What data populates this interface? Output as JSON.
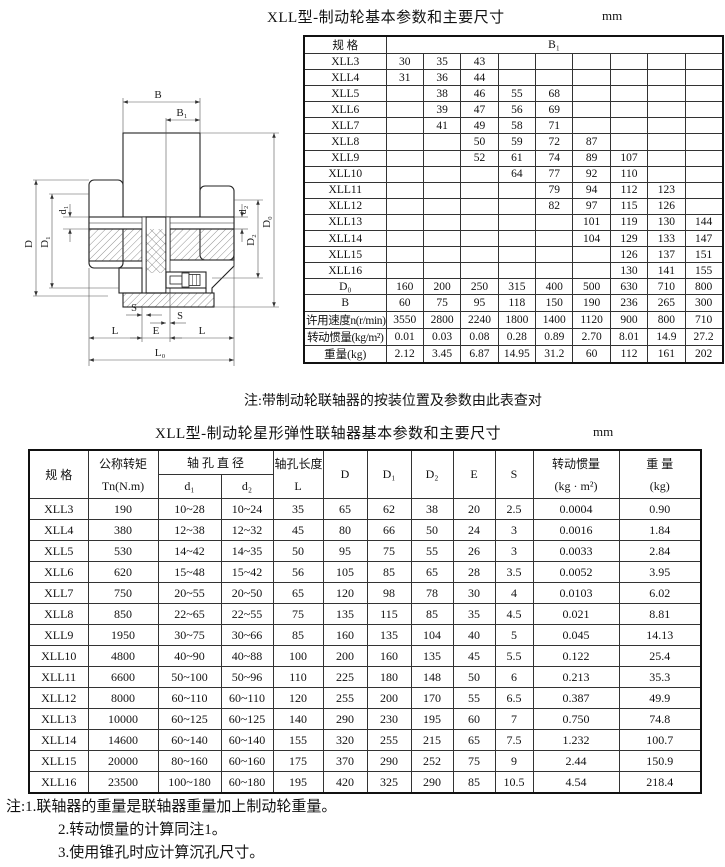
{
  "page": {
    "table1_title": "XLL型-制动轮基本参数和主要尺寸",
    "table1_unit": "mm",
    "table1_note": "注:带制动轮联轴器的按装位置及参数由此表查对",
    "table2_title": "XLL型-制动轮星形弹性联轴器基本参数和主要尺寸",
    "table2_unit": "mm",
    "footnotes": [
      "注:1.联轴器的重量是联轴器重量加上制动轮重量。",
      "2.转动惯量的计算同注1。",
      "3.使用锥孔时应计算沉孔尺寸。"
    ]
  },
  "drawing": {
    "labels": {
      "b": "B",
      "b1": "B₁",
      "d": "D",
      "d1_big": "D₁",
      "d1": "d₁",
      "d2": "d₂",
      "d2_big": "D₂",
      "d0": "D₀",
      "s_left": "S",
      "s_right": "S",
      "l_left": "L",
      "e": "E",
      "l_right": "L",
      "l0": "L₀"
    }
  },
  "table1": {
    "header": {
      "spec": "规 格",
      "b1": "B₁"
    },
    "rows": [
      [
        "XLL3",
        "30",
        "35",
        "43",
        "",
        "",
        "",
        "",
        "",
        ""
      ],
      [
        "XLL4",
        "31",
        "36",
        "44",
        "",
        "",
        "",
        "",
        "",
        ""
      ],
      [
        "XLL5",
        "",
        "38",
        "46",
        "55",
        "68",
        "",
        "",
        "",
        ""
      ],
      [
        "XLL6",
        "",
        "39",
        "47",
        "56",
        "69",
        "",
        "",
        "",
        ""
      ],
      [
        "XLL7",
        "",
        "41",
        "49",
        "58",
        "71",
        "",
        "",
        "",
        ""
      ],
      [
        "XLL8",
        "",
        "",
        "50",
        "59",
        "72",
        "87",
        "",
        "",
        ""
      ],
      [
        "XLL9",
        "",
        "",
        "52",
        "61",
        "74",
        "89",
        "107",
        "",
        ""
      ],
      [
        "XLL10",
        "",
        "",
        "",
        "64",
        "77",
        "92",
        "110",
        "",
        ""
      ],
      [
        "XLL11",
        "",
        "",
        "",
        "",
        "79",
        "94",
        "112",
        "123",
        ""
      ],
      [
        "XLL12",
        "",
        "",
        "",
        "",
        "82",
        "97",
        "115",
        "126",
        ""
      ],
      [
        "XLL13",
        "",
        "",
        "",
        "",
        "",
        "101",
        "119",
        "130",
        "144"
      ],
      [
        "XLL14",
        "",
        "",
        "",
        "",
        "",
        "104",
        "129",
        "133",
        "147"
      ],
      [
        "XLL15",
        "",
        "",
        "",
        "",
        "",
        "",
        "126",
        "137",
        "151"
      ],
      [
        "XLL16",
        "",
        "",
        "",
        "",
        "",
        "",
        "130",
        "141",
        "155"
      ]
    ],
    "footer_rows": [
      [
        "D₀",
        "160",
        "200",
        "250",
        "315",
        "400",
        "500",
        "630",
        "710",
        "800"
      ],
      [
        "B",
        "60",
        "75",
        "95",
        "118",
        "150",
        "190",
        "236",
        "265",
        "300"
      ],
      [
        "许用速度n(r/min)",
        "3550",
        "2800",
        "2240",
        "1800",
        "1400",
        "1120",
        "900",
        "800",
        "710"
      ],
      [
        "转动惯量(kg/m²)",
        "0.01",
        "0.03",
        "0.08",
        "0.28",
        "0.89",
        "2.70",
        "8.01",
        "14.9",
        "27.2"
      ],
      [
        "重量(kg)",
        "2.12",
        "3.45",
        "6.87",
        "14.95",
        "31.2",
        "60",
        "112",
        "161",
        "202"
      ]
    ]
  },
  "table2": {
    "headers": {
      "spec": "规   格",
      "torque_line1": "公称转矩",
      "torque_line2": "Tn(N.m)",
      "bore_dia": "轴 孔 直 径",
      "d1": "d₁",
      "d2": "d₂",
      "bore_len_line1": "轴孔长度",
      "bore_len_line2": "L",
      "D": "D",
      "D1": "D₁",
      "D2": "D₂",
      "E": "E",
      "S": "S",
      "inertia_line1": "转动惯量",
      "inertia_line2": "(kg · m²)",
      "weight_line1": "重 量",
      "weight_line2": "(kg)"
    },
    "rows": [
      [
        "XLL3",
        "190",
        "10~28",
        "10~24",
        "35",
        "65",
        "62",
        "38",
        "20",
        "2.5",
        "0.0004",
        "0.90"
      ],
      [
        "XLL4",
        "380",
        "12~38",
        "12~32",
        "45",
        "80",
        "66",
        "50",
        "24",
        "3",
        "0.0016",
        "1.84"
      ],
      [
        "XLL5",
        "530",
        "14~42",
        "14~35",
        "50",
        "95",
        "75",
        "55",
        "26",
        "3",
        "0.0033",
        "2.84"
      ],
      [
        "XLL6",
        "620",
        "15~48",
        "15~42",
        "56",
        "105",
        "85",
        "65",
        "28",
        "3.5",
        "0.0052",
        "3.95"
      ],
      [
        "XLL7",
        "750",
        "20~55",
        "20~50",
        "65",
        "120",
        "98",
        "78",
        "30",
        "4",
        "0.0103",
        "6.02"
      ],
      [
        "XLL8",
        "850",
        "22~65",
        "22~55",
        "75",
        "135",
        "115",
        "85",
        "35",
        "4.5",
        "0.021",
        "8.81"
      ],
      [
        "XLL9",
        "1950",
        "30~75",
        "30~66",
        "85",
        "160",
        "135",
        "104",
        "40",
        "5",
        "0.045",
        "14.13"
      ],
      [
        "XLL10",
        "4800",
        "40~90",
        "40~88",
        "100",
        "200",
        "160",
        "135",
        "45",
        "5.5",
        "0.122",
        "25.4"
      ],
      [
        "XLL11",
        "6600",
        "50~100",
        "50~96",
        "110",
        "225",
        "180",
        "148",
        "50",
        "6",
        "0.213",
        "35.3"
      ],
      [
        "XLL12",
        "8000",
        "60~110",
        "60~110",
        "120",
        "255",
        "200",
        "170",
        "55",
        "6.5",
        "0.387",
        "49.9"
      ],
      [
        "XLL13",
        "10000",
        "60~125",
        "60~125",
        "140",
        "290",
        "230",
        "195",
        "60",
        "7",
        "0.750",
        "74.8"
      ],
      [
        "XLL14",
        "14600",
        "60~140",
        "60~140",
        "155",
        "320",
        "255",
        "215",
        "65",
        "7.5",
        "1.232",
        "100.7"
      ],
      [
        "XLL15",
        "20000",
        "80~160",
        "60~160",
        "175",
        "370",
        "290",
        "252",
        "75",
        "9",
        "2.44",
        "150.9"
      ],
      [
        "XLL16",
        "23500",
        "100~180",
        "60~180",
        "195",
        "420",
        "325",
        "290",
        "85",
        "10.5",
        "4.54",
        "218.4"
      ]
    ]
  }
}
